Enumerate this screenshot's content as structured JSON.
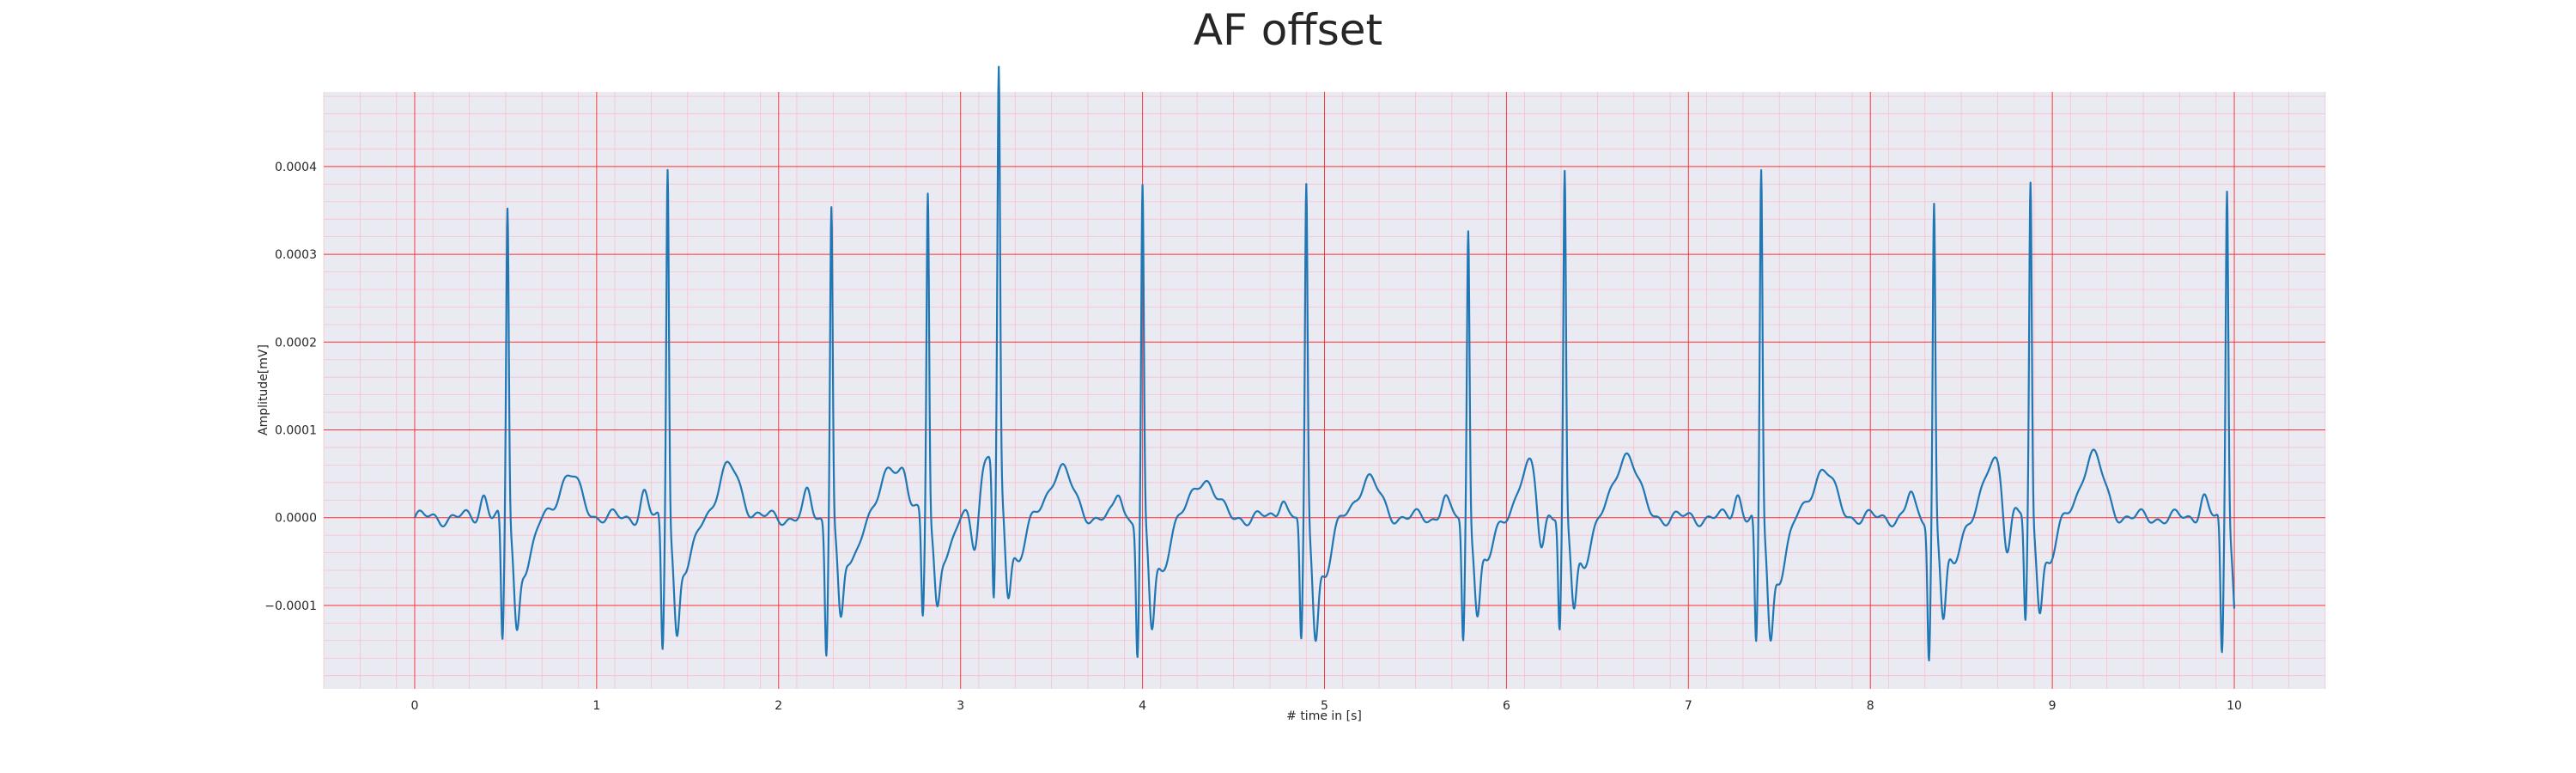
{
  "chart_data": {
    "type": "line",
    "title": "AF offset",
    "xlabel": "# time in [s]",
    "ylabel": "Amplitude[mV]",
    "xlim": [
      -0.5,
      10.5
    ],
    "ylim": [
      -0.000195,
      0.000485
    ],
    "xticks": [
      0,
      1,
      2,
      3,
      4,
      5,
      6,
      7,
      8,
      9,
      10
    ],
    "xtick_labels": [
      "0",
      "1",
      "2",
      "3",
      "4",
      "5",
      "6",
      "7",
      "8",
      "9",
      "10"
    ],
    "yticks": [
      -0.0001,
      0.0,
      0.0001,
      0.0002,
      0.0003,
      0.0004
    ],
    "ytick_labels": [
      "−0.0001",
      "0.0000",
      "0.0001",
      "0.0002",
      "0.0003",
      "0.0004"
    ],
    "grid": "major-red-minor-pink",
    "background": "#eaeaf2",
    "line_color": "#1f77b4",
    "major_grid_color": "#ff0000",
    "minor_grid_color": "#ffb6c1",
    "beats": [
      {
        "t": 0.51,
        "r": 0.000357,
        "q": -0.000145,
        "s": -9.8e-05,
        "p": 2.7e-05,
        "t_wave": 4.8e-05
      },
      {
        "t": 1.39,
        "r": 0.000408,
        "q": -0.000152,
        "s": -0.000105,
        "p": 2.7e-05,
        "t_wave": 5.7e-05
      },
      {
        "t": 2.29,
        "r": 0.000362,
        "q": -0.00015,
        "s": -9.3e-05,
        "p": 2.6e-05,
        "t_wave": 5.8e-05
      },
      {
        "t": 2.82,
        "r": 0.000373,
        "q": -0.000117,
        "s": -7.5e-05,
        "p": 2e-05,
        "t_wave": 7.1e-05
      },
      {
        "t": 3.21,
        "r": 0.000457,
        "q": -0.000162,
        "s": -8e-05,
        "p": -5.5e-05,
        "t_wave": 5.8e-05
      },
      {
        "t": 4.0,
        "r": 0.000375,
        "q": -0.000155,
        "s": -0.0001,
        "p": 2.8e-05,
        "t_wave": 4.5e-05
      },
      {
        "t": 4.9,
        "r": 0.000377,
        "q": -0.000145,
        "s": -0.000105,
        "p": 2.6e-05,
        "t_wave": 4.4e-05
      },
      {
        "t": 5.79,
        "r": 0.000332,
        "q": -0.000142,
        "s": -8.5e-05,
        "p": 2.4e-05,
        "t_wave": 5.8e-05
      },
      {
        "t": 6.32,
        "r": 0.00039,
        "q": -0.000133,
        "s": -8.3e-05,
        "p": -6.5e-05,
        "t_wave": 7.5e-05
      },
      {
        "t": 7.4,
        "r": 0.000397,
        "q": -0.00015,
        "s": -0.00011,
        "p": 2.8e-05,
        "t_wave": 5.5e-05
      },
      {
        "t": 8.35,
        "r": 0.000362,
        "q": -0.000158,
        "s": -9.2e-05,
        "p": 2.6e-05,
        "t_wave": 6.5e-05
      },
      {
        "t": 8.88,
        "r": 0.000377,
        "q": -0.000125,
        "s": -8e-05,
        "p": -7e-05,
        "t_wave": 7.2e-05
      },
      {
        "t": 9.96,
        "r": 0.000378,
        "q": -0.00016,
        "s": -9.8e-05,
        "p": 2.6e-05,
        "t_wave": 0.0
      }
    ]
  }
}
